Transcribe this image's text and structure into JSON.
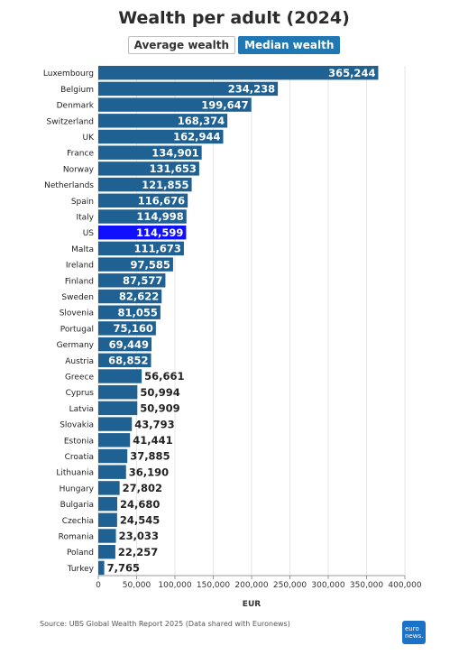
{
  "header": {
    "title": "Wealth per adult (2024)",
    "toggle_average": "Average wealth",
    "toggle_median": "Median wealth"
  },
  "footer": {
    "source": "Source: UBS Global Wealth Report 2025 (Data shared with Euronews)",
    "logo_line1": "euro",
    "logo_line2": "news."
  },
  "colors": {
    "bar": "#1f6193",
    "highlight": "#1010ff",
    "toggle_active": "#1f77b4"
  },
  "chart_data": {
    "type": "bar",
    "orientation": "horizontal",
    "xlabel": "EUR",
    "xlim": [
      0,
      400000
    ],
    "grid": true,
    "highlighted_category": "US",
    "x_ticks": [
      0,
      50000,
      100000,
      150000,
      200000,
      250000,
      300000,
      350000,
      400000
    ],
    "x_tick_labels": [
      "0",
      "50,000",
      "100,000",
      "150,000",
      "200,000",
      "250,000",
      "300,000",
      "350,000",
      "400,000"
    ],
    "categories": [
      "Luxembourg",
      "Belgium",
      "Denmark",
      "Switzerland",
      "UK",
      "France",
      "Norway",
      "Netherlands",
      "Spain",
      "Italy",
      "US",
      "Malta",
      "Ireland",
      "Finland",
      "Sweden",
      "Slovenia",
      "Portugal",
      "Germany",
      "Austria",
      "Greece",
      "Cyprus",
      "Latvia",
      "Slovakia",
      "Estonia",
      "Croatia",
      "Lithuania",
      "Hungary",
      "Bulgaria",
      "Czechia",
      "Romania",
      "Poland",
      "Turkey"
    ],
    "values": [
      365244,
      234238,
      199647,
      168374,
      162944,
      134901,
      131653,
      121855,
      116676,
      114998,
      114599,
      111673,
      97585,
      87577,
      82622,
      81055,
      75160,
      69449,
      68852,
      56661,
      50994,
      50909,
      43793,
      41441,
      37885,
      36190,
      27802,
      24680,
      24545,
      23033,
      22257,
      7765
    ],
    "value_labels": [
      "365,244",
      "234,238",
      "199,647",
      "168,374",
      "162,944",
      "134,901",
      "131,653",
      "121,855",
      "116,676",
      "114,998",
      "114,599",
      "111,673",
      "97,585",
      "87,577",
      "82,622",
      "81,055",
      "75,160",
      "69,449",
      "68,852",
      "56,661",
      "50,994",
      "50,909",
      "43,793",
      "41,441",
      "37,885",
      "36,190",
      "27,802",
      "24,680",
      "24,545",
      "23,033",
      "22,257",
      "7,765"
    ]
  }
}
